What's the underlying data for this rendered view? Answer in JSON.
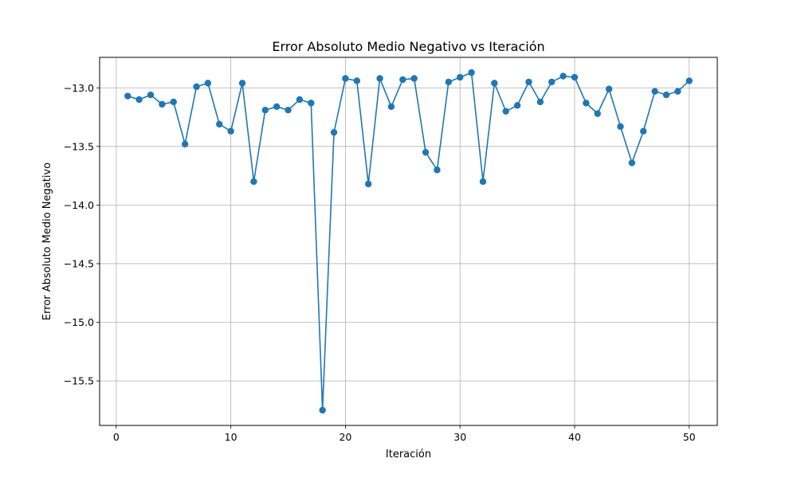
{
  "chart_data": {
    "type": "line",
    "title": "Error Absoluto Medio Negativo vs Iteración",
    "xlabel": "Iteración",
    "ylabel": "Error Absoluto Medio Negativo",
    "xlim": [
      -1.45,
      52.45
    ],
    "ylim": [
      -15.88,
      -12.74
    ],
    "xticks": [
      0,
      10,
      20,
      30,
      40,
      50
    ],
    "xtick_labels": [
      "0",
      "10",
      "20",
      "30",
      "40",
      "50"
    ],
    "yticks": [
      -13.0,
      -13.5,
      -14.0,
      -14.5,
      -15.0,
      -15.5
    ],
    "ytick_labels": [
      "−13.0",
      "−13.5",
      "−14.0",
      "−14.5",
      "−15.0",
      "−15.5"
    ],
    "grid": true,
    "series": [
      {
        "color": "#1f77b4",
        "marker": "circle",
        "x": [
          1,
          2,
          3,
          4,
          5,
          6,
          7,
          8,
          9,
          10,
          11,
          12,
          13,
          14,
          15,
          16,
          17,
          18,
          19,
          20,
          21,
          22,
          23,
          24,
          25,
          26,
          27,
          28,
          29,
          30,
          31,
          32,
          33,
          34,
          35,
          36,
          37,
          38,
          39,
          40,
          41,
          42,
          43,
          44,
          45,
          46,
          47,
          48,
          49,
          50
        ],
        "y": [
          -13.07,
          -13.1,
          -13.06,
          -13.14,
          -13.12,
          -13.48,
          -12.99,
          -12.96,
          -13.31,
          -13.37,
          -12.96,
          -13.8,
          -13.19,
          -13.16,
          -13.19,
          -13.1,
          -13.13,
          -15.75,
          -13.38,
          -12.92,
          -12.94,
          -13.82,
          -12.92,
          -13.16,
          -12.93,
          -12.92,
          -13.55,
          -13.7,
          -12.95,
          -12.91,
          -12.87,
          -13.8,
          -12.96,
          -13.2,
          -13.15,
          -12.95,
          -13.12,
          -12.95,
          -12.9,
          -12.91,
          -13.13,
          -13.22,
          -13.01,
          -13.33,
          -13.64,
          -13.37,
          -13.03,
          -13.06,
          -13.03,
          -12.94
        ]
      }
    ]
  }
}
